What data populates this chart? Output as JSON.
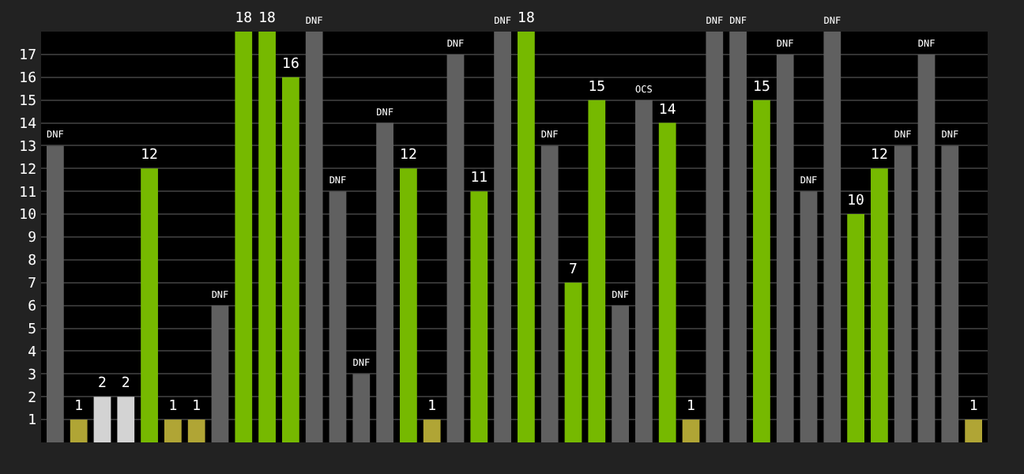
{
  "chart_data": {
    "type": "bar",
    "categories": [
      null,
      null,
      null,
      null,
      null,
      null,
      null,
      null,
      null,
      null,
      null,
      null,
      null,
      null,
      null,
      null,
      null,
      null,
      null,
      null,
      null,
      null,
      null,
      null,
      null,
      null,
      null,
      null,
      null,
      null,
      null,
      null,
      null,
      null,
      null,
      null,
      null,
      null,
      null,
      null
    ],
    "values": [
      13,
      1,
      2,
      2,
      12,
      1,
      1,
      6,
      18,
      18,
      16,
      18,
      11,
      3,
      14,
      12,
      1,
      17,
      11,
      18,
      18,
      13,
      7,
      15,
      6,
      15,
      14,
      1,
      18,
      18,
      15,
      17,
      11,
      18,
      10,
      12,
      13,
      17,
      13,
      1
    ],
    "value_labels": [
      "DNF",
      "1",
      "2",
      "2",
      "12",
      "1",
      "1",
      "DNF",
      "18",
      "18",
      "16",
      "DNF",
      "DNF",
      "DNF",
      "DNF",
      "12",
      "1",
      "DNF",
      "11",
      "DNF",
      "18",
      "DNF",
      "7",
      "15",
      "DNF",
      "OCS",
      "14",
      "1",
      "DNF",
      "DNF",
      "15",
      "DNF",
      "DNF",
      "DNF",
      "10",
      "12",
      "DNF",
      "DNF",
      "DNF",
      "1"
    ],
    "colors": [
      "#606060",
      "#b0a535",
      "#d3d3d3",
      "#d3d3d3",
      "#76b900",
      "#b0a535",
      "#b0a535",
      "#606060",
      "#76b900",
      "#76b900",
      "#76b900",
      "#606060",
      "#606060",
      "#606060",
      "#606060",
      "#76b900",
      "#b0a535",
      "#606060",
      "#76b900",
      "#606060",
      "#76b900",
      "#606060",
      "#76b900",
      "#76b900",
      "#606060",
      "#606060",
      "#76b900",
      "#b0a535",
      "#606060",
      "#606060",
      "#76b900",
      "#606060",
      "#606060",
      "#606060",
      "#76b900",
      "#76b900",
      "#606060",
      "#606060",
      "#606060",
      "#b0a535"
    ],
    "ylim": [
      0,
      18
    ],
    "yticks": [
      1,
      2,
      3,
      4,
      5,
      6,
      7,
      8,
      9,
      10,
      11,
      12,
      13,
      14,
      15,
      16,
      17
    ],
    "grid": "y",
    "tick_labels": "y"
  }
}
